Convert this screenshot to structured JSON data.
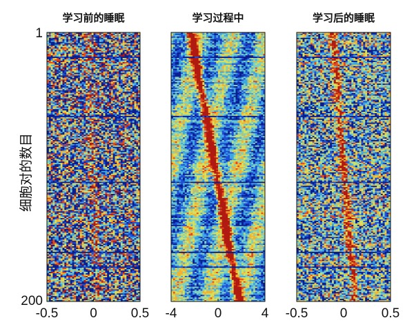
{
  "chart_data": {
    "ylabel": "细胞对的数目",
    "y_tick_labels": [
      "1",
      "200"
    ],
    "ylim": [
      1,
      200
    ],
    "n_rows": 200,
    "colormap": [
      "#0a1f8f",
      "#1f4fd6",
      "#3fa6e0",
      "#7fd0c0",
      "#d8df5a",
      "#f2b233",
      "#e34a1c",
      "#b01a10"
    ],
    "panels": [
      {
        "type": "heatmap",
        "title": "学习前的睡眠",
        "xlim": [
          -0.5,
          0.5
        ],
        "x_tick_labels": [
          "-0.5",
          "0",
          "0.5"
        ],
        "x_ticks": [
          -0.5,
          0,
          0.5
        ],
        "ridge_start_x": -0.05,
        "ridge_end_x": 0.05,
        "ridge_width": 0.05,
        "ridge_strength": 0.25,
        "noise": 0.55
      },
      {
        "type": "heatmap",
        "title": "学习过程中",
        "xlim": [
          -4,
          4
        ],
        "x_tick_labels": [
          "-4",
          "0",
          "4"
        ],
        "x_ticks": [
          -4,
          0,
          4
        ],
        "ridge_start_x": -2.3,
        "ridge_end_x": 1.8,
        "ridge_width": 0.35,
        "ridge_strength": 0.85,
        "noise": 0.18
      },
      {
        "type": "heatmap",
        "title": "学习后的睡眠",
        "xlim": [
          -0.5,
          0.5
        ],
        "x_tick_labels": [
          "-0.5",
          "0",
          "0.5"
        ],
        "x_ticks": [
          -0.5,
          0,
          0.5
        ],
        "ridge_start_x": -0.12,
        "ridge_end_x": 0.12,
        "ridge_width": 0.04,
        "ridge_strength": 0.6,
        "noise": 0.4
      }
    ]
  }
}
